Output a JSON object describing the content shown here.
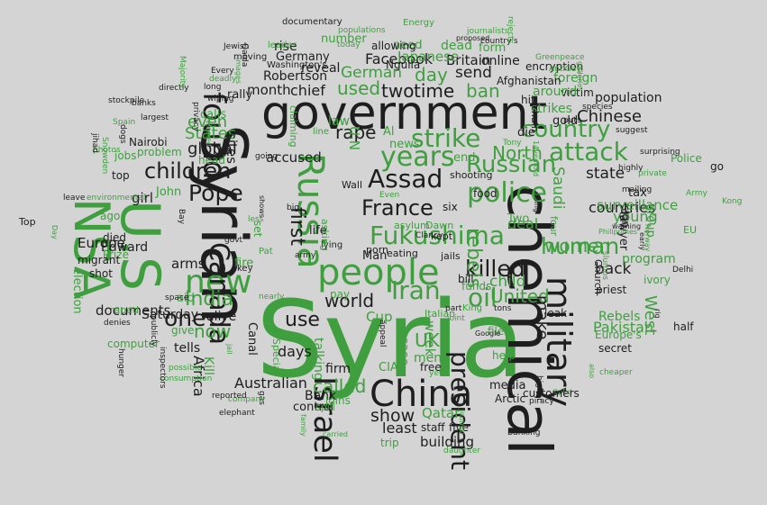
{
  "colors": {
    "background": "#d4d4d4",
    "dark": "#1e1e1e",
    "green": "#3f9f3f"
  },
  "words": [
    {
      "t": "Syria",
      "c": "green"
    },
    {
      "t": "chemical",
      "c": "dark"
    },
    {
      "t": "government",
      "c": "dark"
    },
    {
      "t": "Syrian",
      "c": "dark"
    },
    {
      "t": "people",
      "c": "green"
    },
    {
      "t": "NSA",
      "c": "green"
    },
    {
      "t": "U.S",
      "c": "green"
    },
    {
      "t": "China",
      "c": "dark"
    },
    {
      "t": "Fukushima",
      "c": "green"
    },
    {
      "t": "police",
      "c": "green"
    },
    {
      "t": "Russian",
      "c": "green"
    },
    {
      "t": "years",
      "c": "green"
    },
    {
      "t": "attack",
      "c": "green"
    },
    {
      "t": "Russia",
      "c": "green"
    },
    {
      "t": "new",
      "c": "green"
    },
    {
      "t": "killed",
      "c": "dark"
    },
    {
      "t": "Assad",
      "c": "dark"
    },
    {
      "t": "Pope",
      "c": "dark"
    },
    {
      "t": "military",
      "c": "dark"
    },
    {
      "t": "Canada",
      "c": "dark"
    },
    {
      "t": "Israel",
      "c": "dark"
    },
    {
      "t": "France",
      "c": "dark"
    },
    {
      "t": "Iran",
      "c": "green"
    },
    {
      "t": "oil",
      "c": "green"
    },
    {
      "t": "human",
      "c": "green"
    },
    {
      "t": "strike",
      "c": "green"
    },
    {
      "t": "country",
      "c": "green"
    },
    {
      "t": "president",
      "c": "dark"
    },
    {
      "t": "children",
      "c": "dark"
    },
    {
      "t": "world",
      "c": "dark"
    },
    {
      "t": "one",
      "c": "dark"
    },
    {
      "t": "India",
      "c": "green"
    },
    {
      "t": "women",
      "c": "green"
    },
    {
      "t": "rebels",
      "c": "green"
    },
    {
      "t": "found",
      "c": "dark"
    },
    {
      "t": "United",
      "c": "green"
    },
    {
      "t": "North",
      "c": "green"
    },
    {
      "t": "first",
      "c": "dark"
    },
    {
      "t": "rape",
      "c": "dark"
    },
    {
      "t": "two",
      "c": "dark"
    },
    {
      "t": "time",
      "c": "dark"
    },
    {
      "t": "ban",
      "c": "green"
    },
    {
      "t": "use",
      "c": "dark"
    },
    {
      "t": "now",
      "c": "green"
    },
    {
      "t": "West",
      "c": "green"
    },
    {
      "t": "UK",
      "c": "green"
    },
    {
      "t": "show",
      "c": "dark"
    },
    {
      "t": "Chinese",
      "c": "dark"
    },
    {
      "t": "used",
      "c": "green"
    },
    {
      "t": "German",
      "c": "green"
    },
    {
      "t": "state",
      "c": "dark"
    },
    {
      "t": "Britain",
      "c": "dark"
    },
    {
      "t": "Facebook",
      "c": "dark"
    },
    {
      "t": "day",
      "c": "green"
    },
    {
      "t": "send",
      "c": "dark"
    },
    {
      "t": "back",
      "c": "dark"
    },
    {
      "t": "countries",
      "c": "dark"
    },
    {
      "t": "Australian",
      "c": "dark"
    },
    {
      "t": "called",
      "c": "green"
    },
    {
      "t": "global",
      "c": "dark"
    },
    {
      "t": "even",
      "c": "green"
    },
    {
      "t": "States",
      "c": "green"
    },
    {
      "t": "child",
      "c": "green"
    },
    {
      "t": "Qatar",
      "c": "green"
    },
    {
      "t": "days",
      "c": "dark"
    },
    {
      "t": "accused",
      "c": "dark"
    },
    {
      "t": "month",
      "c": "dark"
    },
    {
      "t": "chief",
      "c": "dark"
    },
    {
      "t": "Saudi",
      "c": "green"
    },
    {
      "t": "young",
      "c": "green"
    },
    {
      "t": "surveillance",
      "c": "green"
    },
    {
      "t": "Pakistan",
      "c": "green"
    },
    {
      "t": "Rebels",
      "c": "green"
    },
    {
      "t": "program",
      "c": "green"
    },
    {
      "t": "documents",
      "c": "dark"
    },
    {
      "t": "arms",
      "c": "dark"
    },
    {
      "t": "least",
      "c": "dark"
    },
    {
      "t": "building",
      "c": "dark"
    },
    {
      "t": "deal",
      "c": "green"
    },
    {
      "t": "week",
      "c": "green"
    },
    {
      "t": "case",
      "c": "green"
    },
    {
      "t": "men",
      "c": "green"
    },
    {
      "t": "make",
      "c": "dark"
    },
    {
      "t": "Europe",
      "c": "dark"
    },
    {
      "t": "Africa",
      "c": "dark"
    },
    {
      "t": "firm",
      "c": "dark"
    },
    {
      "t": "Bank",
      "c": "dark"
    },
    {
      "t": "control",
      "c": "dark"
    },
    {
      "t": "girl",
      "c": "dark"
    },
    {
      "t": "life",
      "c": "dark"
    },
    {
      "t": "alive",
      "c": "dark"
    },
    {
      "t": "tells",
      "c": "dark"
    },
    {
      "t": "Saturday",
      "c": "dark"
    },
    {
      "t": "Edward",
      "c": "dark"
    },
    {
      "t": "CIA",
      "c": "green"
    },
    {
      "t": "Cup",
      "c": "green"
    },
    {
      "t": "Robertson",
      "c": "dark"
    },
    {
      "t": "reveal",
      "c": "dark"
    },
    {
      "t": "online",
      "c": "dark"
    },
    {
      "t": "Man",
      "c": "dark"
    },
    {
      "t": "media",
      "c": "dark"
    },
    {
      "t": "free",
      "c": "dark"
    },
    {
      "t": "five",
      "c": "dark"
    },
    {
      "t": "staff",
      "c": "dark"
    },
    {
      "t": "population",
      "c": "dark"
    },
    {
      "t": "victim",
      "c": "dark"
    },
    {
      "t": "foreign",
      "c": "green"
    },
    {
      "t": "strikes",
      "c": "green"
    },
    {
      "t": "around",
      "c": "green"
    },
    {
      "t": "rally",
      "c": "dark"
    },
    {
      "t": "John",
      "c": "green"
    },
    {
      "t": "Prize",
      "c": "green"
    },
    {
      "t": "aid",
      "c": "green"
    },
    {
      "t": "give",
      "c": "green"
    },
    {
      "t": "election",
      "c": "green"
    },
    {
      "t": "Canal",
      "c": "dark"
    },
    {
      "t": "calls",
      "c": "green"
    },
    {
      "t": "head",
      "c": "green"
    },
    {
      "t": "jobs",
      "c": "green"
    },
    {
      "t": "problem",
      "c": "green"
    },
    {
      "t": "Nairobi",
      "c": "dark"
    },
    {
      "t": "top",
      "c": "dark"
    },
    {
      "t": "migrant",
      "c": "dark"
    },
    {
      "t": "shot",
      "c": "dark"
    },
    {
      "t": "died",
      "c": "dark"
    },
    {
      "t": "ago",
      "c": "green"
    },
    {
      "t": "fire",
      "c": "green"
    },
    {
      "t": "set",
      "c": "green"
    },
    {
      "t": "law",
      "c": "green"
    },
    {
      "t": "news",
      "c": "green"
    },
    {
      "t": "Al",
      "c": "green"
    },
    {
      "t": "end",
      "c": "green"
    },
    {
      "t": "die",
      "c": "dark"
    },
    {
      "t": "Two",
      "c": "green"
    },
    {
      "t": "four",
      "c": "green"
    },
    {
      "t": "tax",
      "c": "dark"
    },
    {
      "t": "sign",
      "c": "dark"
    },
    {
      "t": "lawyer",
      "c": "dark"
    },
    {
      "t": "group",
      "c": "green"
    },
    {
      "t": "Church",
      "c": "dark"
    },
    {
      "t": "leak",
      "c": "dark"
    },
    {
      "t": "go",
      "c": "dark"
    },
    {
      "t": "half",
      "c": "dark"
    },
    {
      "t": "priest",
      "c": "dark"
    },
    {
      "t": "ivory",
      "c": "green"
    },
    {
      "t": "Police",
      "c": "green"
    },
    {
      "t": "Europe's",
      "c": "green"
    },
    {
      "t": "secret",
      "c": "dark"
    },
    {
      "t": "Arctic",
      "c": "dark"
    },
    {
      "t": "help",
      "c": "green"
    },
    {
      "t": "files",
      "c": "green"
    },
    {
      "t": "pay",
      "c": "green"
    },
    {
      "t": "Italian",
      "c": "green"
    },
    {
      "t": "funds",
      "c": "green"
    },
    {
      "t": "bill",
      "c": "dark"
    },
    {
      "t": "jails",
      "c": "dark"
    },
    {
      "t": "kept",
      "c": "dark"
    },
    {
      "t": "porn",
      "c": "dark"
    },
    {
      "t": "eating",
      "c": "dark"
    },
    {
      "t": "asylum",
      "c": "green"
    },
    {
      "t": "Dawn",
      "c": "green"
    },
    {
      "t": "six",
      "c": "dark"
    },
    {
      "t": "food",
      "c": "dark"
    },
    {
      "t": "shooting",
      "c": "dark"
    },
    {
      "t": "need",
      "c": "green"
    },
    {
      "t": "Japanese",
      "c": "green"
    },
    {
      "t": "dead",
      "c": "green"
    },
    {
      "t": "form",
      "c": "green"
    },
    {
      "t": "allowing",
      "c": "dark"
    },
    {
      "t": "rise",
      "c": "dark"
    },
    {
      "t": "Germany",
      "c": "dark"
    },
    {
      "t": "number",
      "c": "green"
    },
    {
      "t": "leader",
      "c": "green"
    },
    {
      "t": "documentary",
      "c": "dark"
    },
    {
      "t": "moving",
      "c": "dark"
    },
    {
      "t": "Washington's",
      "c": "dark"
    },
    {
      "t": "encryption",
      "c": "dark"
    },
    {
      "t": "Nguila",
      "c": "dark"
    },
    {
      "t": "Afghanistan",
      "c": "dark"
    },
    {
      "t": "hit",
      "c": "dark"
    },
    {
      "t": "chain",
      "c": "dark"
    },
    {
      "t": "gold",
      "c": "dark"
    },
    {
      "t": "line",
      "c": "green"
    },
    {
      "t": "U.N",
      "c": "green"
    },
    {
      "t": "Wall",
      "c": "dark"
    },
    {
      "t": "EU",
      "c": "green"
    },
    {
      "t": "Delhi",
      "c": "dark"
    },
    {
      "t": "Kong",
      "c": "green"
    },
    {
      "t": "mailing",
      "c": "dark"
    },
    {
      "t": "highly",
      "c": "dark"
    },
    {
      "t": "species",
      "c": "dark"
    },
    {
      "t": "puts",
      "c": "dark"
    },
    {
      "t": "suggest",
      "c": "dark"
    },
    {
      "t": "surprising",
      "c": "dark"
    },
    {
      "t": "private",
      "c": "green"
    },
    {
      "t": "cheaper",
      "c": "green"
    },
    {
      "t": "OpEd",
      "c": "green"
    },
    {
      "t": "higher",
      "c": "dark"
    },
    {
      "t": "Banking",
      "c": "dark"
    },
    {
      "t": "customers",
      "c": "dark"
    },
    {
      "t": "piracy",
      "c": "dark"
    },
    {
      "t": "daughter",
      "c": "green"
    },
    {
      "t": "trip",
      "c": "green"
    },
    {
      "t": "joins",
      "c": "green"
    },
    {
      "t": "carried",
      "c": "green"
    },
    {
      "t": "spill",
      "c": "green"
    },
    {
      "t": "Special",
      "c": "green"
    },
    {
      "t": "gas",
      "c": "dark"
    },
    {
      "t": "company",
      "c": "green"
    },
    {
      "t": "elephant",
      "c": "dark"
    },
    {
      "t": "reported",
      "c": "dark"
    },
    {
      "t": "consumption",
      "c": "green"
    },
    {
      "t": "possible",
      "c": "green"
    },
    {
      "t": "computer",
      "c": "green"
    },
    {
      "t": "raped",
      "c": "green"
    },
    {
      "t": "denies",
      "c": "dark"
    },
    {
      "t": "space",
      "c": "dark"
    },
    {
      "t": "nearly",
      "c": "green"
    },
    {
      "t": "Pat",
      "c": "green"
    },
    {
      "t": "key",
      "c": "dark"
    },
    {
      "t": "govt",
      "c": "dark"
    },
    {
      "t": "army",
      "c": "dark"
    },
    {
      "t": "lying",
      "c": "dark"
    },
    {
      "t": "King",
      "c": "green"
    },
    {
      "t": "tons",
      "c": "dark"
    },
    {
      "t": "part",
      "c": "dark"
    },
    {
      "t": "Google",
      "c": "dark"
    },
    {
      "t": "joint",
      "c": "green"
    },
    {
      "t": "yet",
      "c": "green"
    },
    {
      "t": "appeal",
      "c": "dark"
    },
    {
      "t": "big",
      "c": "dark"
    },
    {
      "t": "less",
      "c": "green"
    },
    {
      "t": "Bay",
      "c": "dark"
    },
    {
      "t": "Top",
      "c": "dark"
    },
    {
      "t": "leave",
      "c": "dark"
    },
    {
      "t": "environmental",
      "c": "green"
    },
    {
      "t": "photos",
      "c": "green"
    },
    {
      "t": "Spain",
      "c": "green"
    },
    {
      "t": "dogs",
      "c": "dark"
    },
    {
      "t": "banks",
      "c": "dark"
    },
    {
      "t": "stockpile",
      "c": "dark"
    },
    {
      "t": "largest",
      "c": "dark"
    },
    {
      "t": "directly",
      "c": "dark"
    },
    {
      "t": "deadly",
      "c": "green"
    },
    {
      "t": "wiping",
      "c": "dark"
    },
    {
      "t": "long",
      "c": "dark"
    },
    {
      "t": "Every",
      "c": "dark"
    },
    {
      "t": "Jewish",
      "c": "dark"
    },
    {
      "t": "populations",
      "c": "green"
    },
    {
      "t": "Energy",
      "c": "green"
    },
    {
      "t": "journalists",
      "c": "green"
    },
    {
      "t": "country's",
      "c": "dark"
    },
    {
      "t": "proposed",
      "c": "dark"
    },
    {
      "t": "today",
      "c": "green"
    },
    {
      "t": "rejects",
      "c": "green"
    },
    {
      "t": "Greenpeace",
      "c": "green"
    },
    {
      "t": "AntiGay",
      "c": "green"
    },
    {
      "t": "galleries",
      "c": "green"
    },
    {
      "t": "warning",
      "c": "dark"
    },
    {
      "t": "Army",
      "c": "green"
    },
    {
      "t": "Philippines",
      "c": "green"
    },
    {
      "t": "Norway",
      "c": "green"
    },
    {
      "t": "early",
      "c": "dark"
    },
    {
      "t": "rig",
      "c": "dark"
    },
    {
      "t": "also",
      "c": "green"
    },
    {
      "t": "14yearold",
      "c": "green"
    },
    {
      "t": "Tony",
      "c": "green"
    },
    {
      "t": "rising",
      "c": "dark"
    },
    {
      "t": "Journal",
      "c": "green"
    },
    {
      "t": "Clancy",
      "c": "dark"
    },
    {
      "t": "Kill",
      "c": "green"
    },
    {
      "t": "jail",
      "c": "green"
    },
    {
      "t": "sites",
      "c": "dark"
    },
    {
      "t": "going",
      "c": "dark"
    },
    {
      "t": "Even",
      "c": "green"
    },
    {
      "t": "shows",
      "c": "dark"
    },
    {
      "t": "Day",
      "c": "green"
    },
    {
      "t": "Qaida",
      "c": "dark"
    },
    {
      "t": "images",
      "c": "green"
    },
    {
      "t": "Majority",
      "c": "green"
    },
    {
      "t": "privacy",
      "c": "dark"
    },
    {
      "t": "rejected",
      "c": "green"
    },
    {
      "t": "claiming",
      "c": "green"
    },
    {
      "t": "asking",
      "c": "green"
    },
    {
      "t": "hunger",
      "c": "dark"
    },
    {
      "t": "jihad",
      "c": "dark"
    },
    {
      "t": "Snowden",
      "c": "green"
    },
    {
      "t": "inspectors",
      "c": "dark"
    },
    {
      "t": "publicly",
      "c": "dark"
    },
    {
      "t": "family",
      "c": "green"
    },
    {
      "t": "slumps",
      "c": "green"
    },
    {
      "t": "talking",
      "c": "green"
    },
    {
      "t": "Iraq",
      "c": "green"
    },
    {
      "t": "like",
      "c": "green"
    }
  ]
}
